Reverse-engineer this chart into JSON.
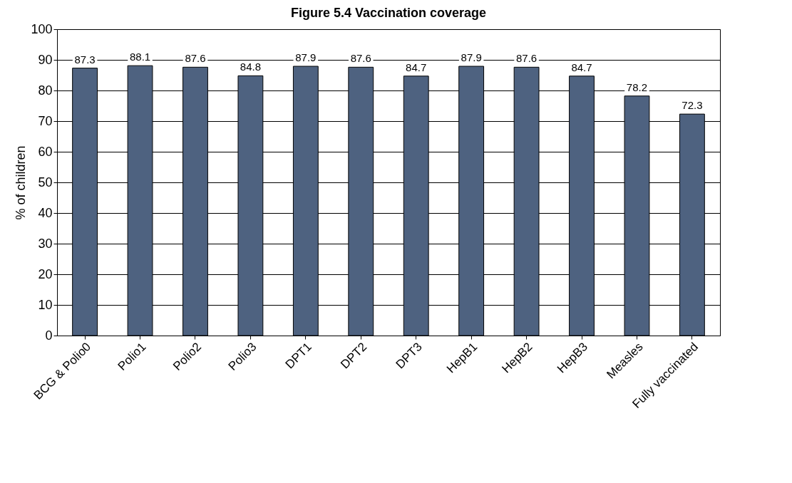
{
  "chart_data": {
    "type": "bar",
    "title": "Figure 5.4 Vaccination coverage",
    "ylabel": "% of children",
    "categories": [
      "BCG & Polio0",
      "Polio1",
      "Polio2",
      "Polio3",
      "DPT1",
      "DPT2",
      "DPT3",
      "HepB1",
      "HepB2",
      "HepB3",
      "Measles",
      "Fully vaccinated"
    ],
    "values": [
      87.3,
      88.1,
      87.6,
      84.8,
      87.9,
      87.6,
      84.7,
      87.9,
      87.6,
      84.7,
      78.2,
      72.3
    ],
    "color": "#4e6280",
    "ylim": [
      0,
      100
    ],
    "yticks": [
      0,
      10,
      20,
      30,
      40,
      50,
      60,
      70,
      80,
      90,
      100
    ],
    "grid": "y",
    "data_labels": true
  }
}
